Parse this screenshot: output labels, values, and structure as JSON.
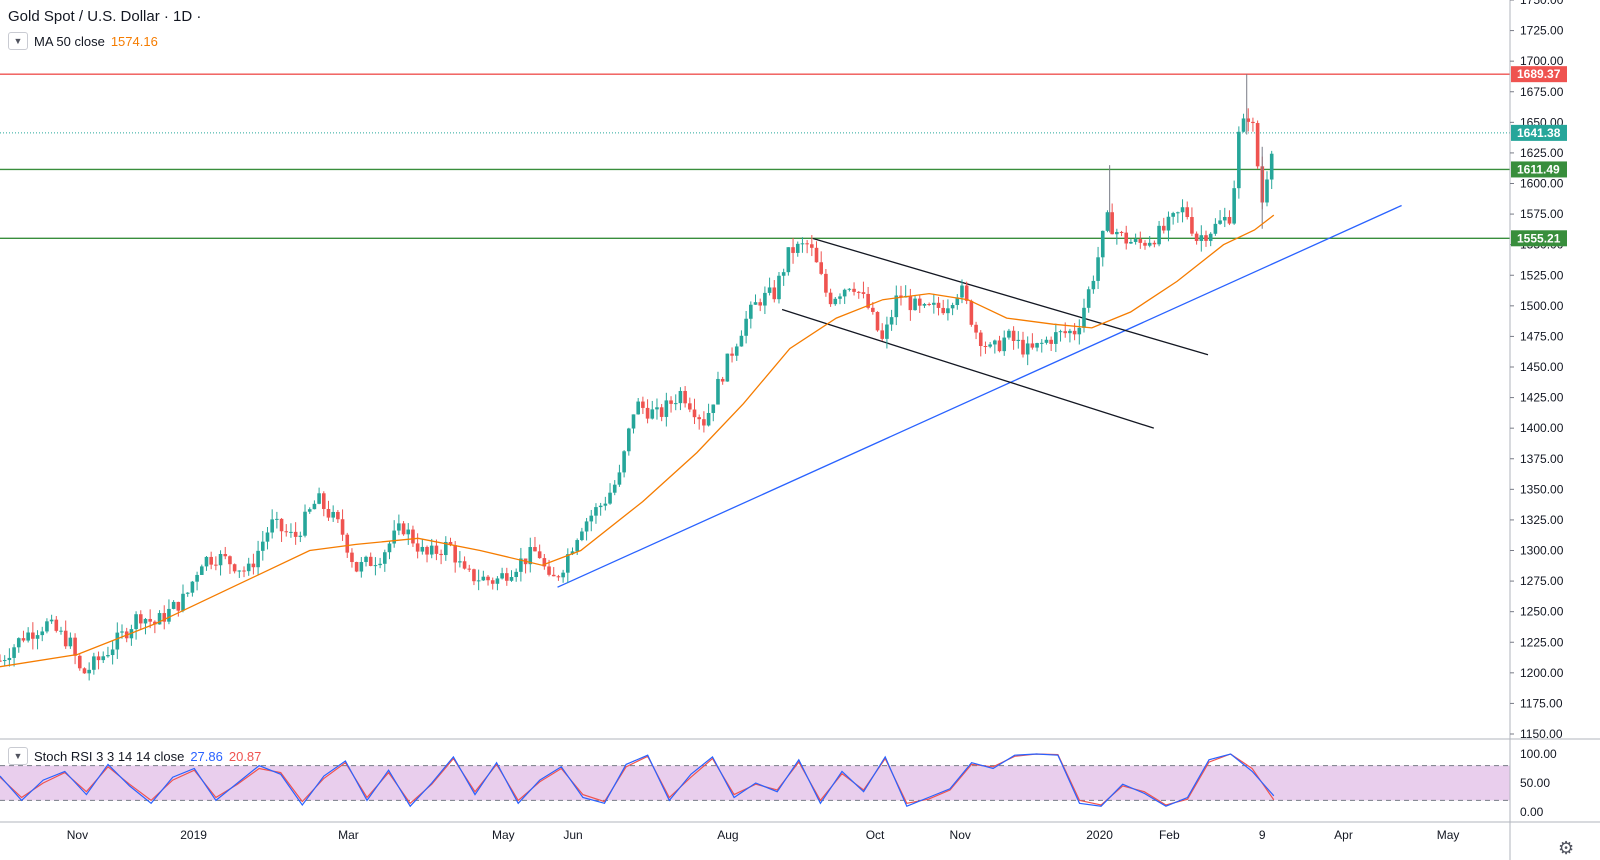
{
  "header": {
    "symbol": "Gold Spot / U.S. Dollar · 1D ·",
    "ma_label": "MA 50 close",
    "ma_value": "1574.16",
    "rsi_label": "Stoch RSI 3 3 14 14 close",
    "rsi_k": "27.86",
    "rsi_d": "20.87"
  },
  "colors": {
    "bull": "#26a69a",
    "bear": "#ef5350",
    "ma": "#f57c00",
    "trend": "#2962ff",
    "resistance": "#ef5350",
    "support": "#388e3c",
    "current": "#26a69a",
    "rsi_k": "#2962ff",
    "rsi_d": "#ef5350",
    "rsi_band": "#e1bee7"
  },
  "icons": {
    "toggle": "chevron-down-icon",
    "settings": "gear-icon"
  },
  "chart_data": {
    "type": "candlestick",
    "title": "Gold Spot / U.S. Dollar · 1D",
    "price_axis": {
      "range": [
        1150,
        1750
      ],
      "ticks": [
        "1750.00",
        "1725.00",
        "1700.00",
        "1675.00",
        "1650.00",
        "1625.00",
        "1600.00",
        "1575.00",
        "1550.00",
        "1525.00",
        "1500.00",
        "1475.00",
        "1450.00",
        "1425.00",
        "1400.00",
        "1375.00",
        "1350.00",
        "1325.00",
        "1300.00",
        "1275.00",
        "1250.00",
        "1225.00",
        "1200.00",
        "1175.00",
        "1150.00"
      ]
    },
    "rsi_axis": {
      "range": [
        0,
        100
      ],
      "ticks": [
        "100.00",
        "50.00",
        "0.00"
      ],
      "upper_band": 80,
      "lower_band": 20
    },
    "time_axis": {
      "labels": [
        "Nov",
        "2019",
        "Mar",
        "May",
        "Jun",
        "Aug",
        "Oct",
        "Nov",
        "2020",
        "Feb",
        "9",
        "Apr",
        "May"
      ],
      "label_positions": [
        1.0,
        2.5,
        4.5,
        6.5,
        7.4,
        9.4,
        11.3,
        12.4,
        14.2,
        15.1,
        16.3,
        17.35,
        18.7
      ]
    },
    "price_path": [
      [
        0,
        1210
      ],
      [
        0.3,
        1230
      ],
      [
        0.6,
        1240
      ],
      [
        0.9,
        1225
      ],
      [
        1.05,
        1198
      ],
      [
        1.3,
        1212
      ],
      [
        1.6,
        1232
      ],
      [
        1.8,
        1248
      ],
      [
        2.0,
        1240
      ],
      [
        2.4,
        1262
      ],
      [
        2.6,
        1292
      ],
      [
        2.8,
        1295
      ],
      [
        3.0,
        1290
      ],
      [
        3.2,
        1282
      ],
      [
        3.5,
        1322
      ],
      [
        3.8,
        1310
      ],
      [
        4.1,
        1342
      ],
      [
        4.4,
        1318
      ],
      [
        4.6,
        1285
      ],
      [
        4.9,
        1295
      ],
      [
        5.2,
        1320
      ],
      [
        5.5,
        1295
      ],
      [
        5.8,
        1305
      ],
      [
        6.0,
        1280
      ],
      [
        6.4,
        1275
      ],
      [
        6.7,
        1290
      ],
      [
        6.95,
        1300
      ],
      [
        7.1,
        1272
      ],
      [
        7.25,
        1285
      ],
      [
        7.5,
        1320
      ],
      [
        7.8,
        1340
      ],
      [
        8.0,
        1360
      ],
      [
        8.2,
        1420
      ],
      [
        8.5,
        1410
      ],
      [
        8.8,
        1430
      ],
      [
        9.1,
        1405
      ],
      [
        9.3,
        1440
      ],
      [
        9.6,
        1485
      ],
      [
        9.8,
        1505
      ],
      [
        10.0,
        1510
      ],
      [
        10.2,
        1545
      ],
      [
        10.45,
        1550
      ],
      [
        10.7,
        1505
      ],
      [
        11.0,
        1520
      ],
      [
        11.2,
        1500
      ],
      [
        11.4,
        1470
      ],
      [
        11.6,
        1510
      ],
      [
        11.9,
        1495
      ],
      [
        12.2,
        1500
      ],
      [
        12.4,
        1515
      ],
      [
        12.6,
        1480
      ],
      [
        12.8,
        1462
      ],
      [
        13.0,
        1475
      ],
      [
        13.3,
        1462
      ],
      [
        13.6,
        1475
      ],
      [
        13.9,
        1480
      ],
      [
        14.1,
        1520
      ],
      [
        14.3,
        1570
      ],
      [
        14.5,
        1555
      ],
      [
        14.7,
        1550
      ],
      [
        15.0,
        1560
      ],
      [
        15.3,
        1580
      ],
      [
        15.45,
        1555
      ],
      [
        15.7,
        1565
      ],
      [
        15.9,
        1575
      ],
      [
        16.0,
        1640
      ],
      [
        16.15,
        1660
      ],
      [
        16.3,
        1585
      ],
      [
        16.45,
        1641.38
      ]
    ],
    "ma50_path": [
      [
        0,
        1205
      ],
      [
        1.0,
        1215
      ],
      [
        2.0,
        1240
      ],
      [
        3.0,
        1270
      ],
      [
        4.0,
        1300
      ],
      [
        4.6,
        1305
      ],
      [
        5.4,
        1310
      ],
      [
        6.2,
        1300
      ],
      [
        7.0,
        1288
      ],
      [
        7.5,
        1300
      ],
      [
        8.3,
        1340
      ],
      [
        9.0,
        1380
      ],
      [
        9.6,
        1420
      ],
      [
        10.2,
        1465
      ],
      [
        10.8,
        1490
      ],
      [
        11.4,
        1505
      ],
      [
        12.0,
        1510
      ],
      [
        12.5,
        1505
      ],
      [
        13.0,
        1490
      ],
      [
        13.6,
        1485
      ],
      [
        14.1,
        1482
      ],
      [
        14.6,
        1495
      ],
      [
        15.2,
        1520
      ],
      [
        15.8,
        1550
      ],
      [
        16.2,
        1562
      ],
      [
        16.45,
        1574.16
      ]
    ],
    "horizontal_levels": [
      {
        "price": 1689.37,
        "label": "1689.37",
        "kind": "resistance"
      },
      {
        "price": 1641.38,
        "label": "1641.38",
        "kind": "current"
      },
      {
        "price": 1611.49,
        "label": "1611.49",
        "kind": "support"
      },
      {
        "price": 1555.21,
        "label": "1555.21",
        "kind": "support"
      }
    ],
    "trendlines": [
      {
        "kind": "trend",
        "from": [
          7.2,
          1270
        ],
        "to": [
          18.1,
          1582
        ]
      },
      {
        "kind": "channel",
        "from": [
          10.5,
          1555
        ],
        "to": [
          15.6,
          1460
        ]
      },
      {
        "kind": "channel",
        "from": [
          10.1,
          1497
        ],
        "to": [
          14.9,
          1400
        ]
      }
    ],
    "stoch_k": [
      62,
      20,
      55,
      70,
      30,
      82,
      45,
      15,
      60,
      75,
      20,
      50,
      80,
      65,
      12,
      62,
      88,
      20,
      72,
      10,
      50,
      95,
      30,
      85,
      15,
      55,
      78,
      25,
      15,
      82,
      98,
      20,
      65,
      95,
      25,
      50,
      35,
      90,
      15,
      70,
      35,
      95,
      10,
      25,
      40,
      85,
      75,
      98,
      100,
      98,
      15,
      10,
      48,
      32,
      10,
      25,
      90,
      100,
      70,
      27.86
    ],
    "stoch_d": [
      60,
      25,
      50,
      68,
      35,
      78,
      48,
      20,
      55,
      72,
      25,
      48,
      75,
      68,
      18,
      58,
      85,
      25,
      68,
      15,
      48,
      92,
      35,
      82,
      20,
      52,
      75,
      30,
      18,
      78,
      96,
      25,
      60,
      92,
      30,
      48,
      38,
      86,
      20,
      66,
      38,
      92,
      15,
      22,
      38,
      82,
      78,
      96,
      100,
      99,
      20,
      12,
      45,
      35,
      12,
      22,
      86,
      100,
      75,
      20.87
    ]
  }
}
